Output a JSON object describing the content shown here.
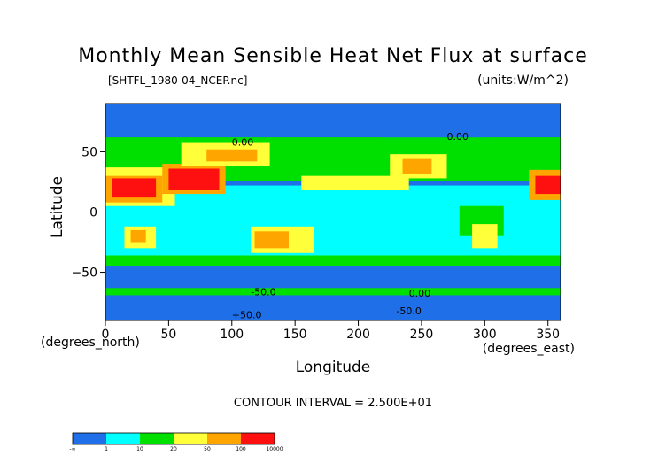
{
  "chart_data": {
    "type": "heatmap",
    "title": "Monthly Mean Sensible Heat Net Flux at surface",
    "file_label": "[SHTFL_1980-04_NCEP.nc]",
    "units_label": "(units:W/m^2)",
    "xlabel": "Longitude",
    "ylabel": "Latitude",
    "x_unit_label": "(degrees_east)",
    "y_unit_label": "(degrees_north)",
    "xlim": [
      0,
      360
    ],
    "ylim": [
      -90,
      90
    ],
    "x_ticks": [
      0,
      50,
      100,
      150,
      200,
      250,
      300,
      350
    ],
    "y_ticks": [
      50,
      0,
      -50
    ],
    "x_tick_labels": [
      "0",
      "50",
      "100",
      "150",
      "200",
      "250",
      "300",
      "350"
    ],
    "y_tick_labels": [
      "50",
      "0",
      "−50"
    ],
    "contour_interval": "CONTOUR INTERVAL = 2.500E+01",
    "contour_labels": [
      "0.00",
      "0.00",
      "-50.0",
      "+50.0",
      "-50.0",
      "0.00"
    ],
    "colorbar": {
      "boundaries": [
        "-∞",
        "1",
        "10",
        "20",
        "50",
        "100",
        "10000"
      ],
      "colors": [
        "#1f6fe8",
        "#00ffff",
        "#00e000",
        "#ffff3a",
        "#ffa500",
        "#ff1010"
      ]
    },
    "regions": [
      {
        "level": 0,
        "lon": [
          0,
          360
        ],
        "lat": [
          -90,
          90
        ]
      },
      {
        "level": 1,
        "lon": [
          0,
          360
        ],
        "lat": [
          -38,
          22
        ]
      },
      {
        "level": 2,
        "lon": [
          0,
          360
        ],
        "lat": [
          26,
          62
        ]
      },
      {
        "level": 2,
        "lon": [
          0,
          360
        ],
        "lat": [
          -45,
          -36
        ]
      },
      {
        "level": 3,
        "lon": [
          0,
          55
        ],
        "lat": [
          5,
          37
        ]
      },
      {
        "level": 4,
        "lon": [
          0,
          45
        ],
        "lat": [
          8,
          30
        ]
      },
      {
        "level": 5,
        "lon": [
          5,
          40
        ],
        "lat": [
          12,
          28
        ]
      },
      {
        "level": 4,
        "lon": [
          45,
          95
        ],
        "lat": [
          15,
          40
        ]
      },
      {
        "level": 5,
        "lon": [
          50,
          90
        ],
        "lat": [
          18,
          36
        ]
      },
      {
        "level": 3,
        "lon": [
          60,
          130
        ],
        "lat": [
          38,
          58
        ]
      },
      {
        "level": 4,
        "lon": [
          80,
          120
        ],
        "lat": [
          42,
          52
        ]
      },
      {
        "level": 3,
        "lon": [
          15,
          40
        ],
        "lat": [
          -30,
          -12
        ]
      },
      {
        "level": 4,
        "lon": [
          20,
          32
        ],
        "lat": [
          -25,
          -15
        ]
      },
      {
        "level": 3,
        "lon": [
          115,
          165
        ],
        "lat": [
          -34,
          -12
        ]
      },
      {
        "level": 4,
        "lon": [
          118,
          145
        ],
        "lat": [
          -30,
          -16
        ]
      },
      {
        "level": 3,
        "lon": [
          155,
          240
        ],
        "lat": [
          18,
          30
        ]
      },
      {
        "level": 3,
        "lon": [
          225,
          270
        ],
        "lat": [
          28,
          48
        ]
      },
      {
        "level": 4,
        "lon": [
          235,
          258
        ],
        "lat": [
          32,
          44
        ]
      },
      {
        "level": 2,
        "lon": [
          280,
          315
        ],
        "lat": [
          -20,
          5
        ]
      },
      {
        "level": 3,
        "lon": [
          290,
          310
        ],
        "lat": [
          -30,
          -10
        ]
      },
      {
        "level": 2,
        "lon": [
          0,
          360
        ],
        "lat": [
          -69,
          -63
        ]
      },
      {
        "level": 4,
        "lon": [
          335,
          360
        ],
        "lat": [
          10,
          35
        ]
      },
      {
        "level": 5,
        "lon": [
          340,
          360
        ],
        "lat": [
          15,
          30
        ]
      },
      {
        "level": 0,
        "lon": [
          220,
          300
        ],
        "lat": [
          62,
          90
        ]
      },
      {
        "level": 0,
        "lon": [
          0,
          360
        ],
        "lat": [
          -90,
          -70
        ]
      },
      {
        "level": 0,
        "lon": [
          0,
          360
        ],
        "lat": [
          -60,
          -48
        ]
      }
    ]
  }
}
